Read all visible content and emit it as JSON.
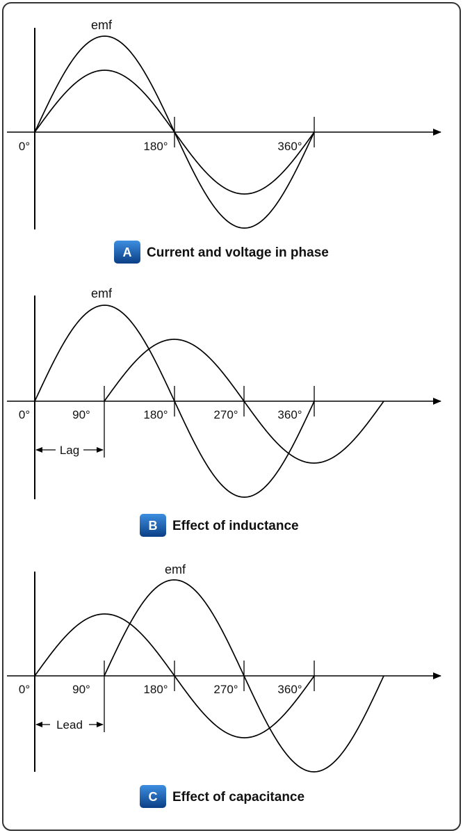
{
  "colors": {
    "badge": "#1f6fc8",
    "badge_dark": "#0b3f86",
    "line": "#000000",
    "frame": "#333333"
  },
  "panels": [
    {
      "id": "A",
      "badge": "A",
      "caption": "Current and voltage in phase",
      "emf_label": "emf",
      "tick_labels": [
        "0°",
        "180°",
        "360°"
      ],
      "lag_label": ""
    },
    {
      "id": "B",
      "badge": "B",
      "caption": "Effect of inductance",
      "emf_label": "emf",
      "tick_labels": [
        "0°",
        "90°",
        "180°",
        "270°",
        "360°"
      ],
      "lag_label": "Lag"
    },
    {
      "id": "C",
      "badge": "C",
      "caption": "Effect of capacitance",
      "emf_label": "emf",
      "tick_labels": [
        "0°",
        "90°",
        "180°",
        "270°",
        "360°"
      ],
      "lag_label": "Lead"
    }
  ]
}
